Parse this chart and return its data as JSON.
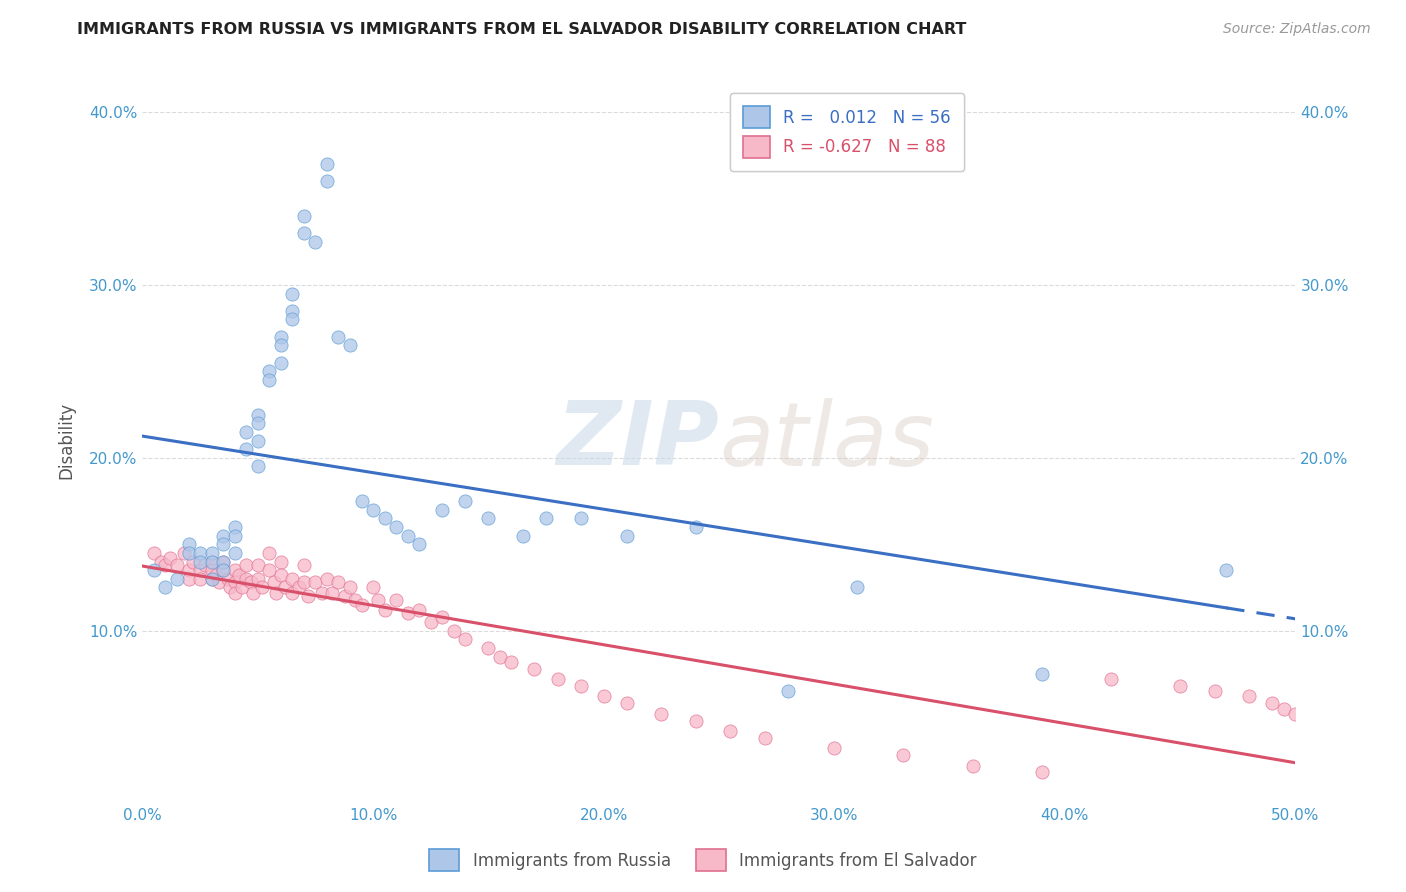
{
  "title": "IMMIGRANTS FROM RUSSIA VS IMMIGRANTS FROM EL SALVADOR DISABILITY CORRELATION CHART",
  "source": "Source: ZipAtlas.com",
  "ylabel": "Disability",
  "xlim": [
    0.0,
    0.5
  ],
  "ylim": [
    0.0,
    0.42
  ],
  "xticks": [
    0.0,
    0.1,
    0.2,
    0.3,
    0.4,
    0.5
  ],
  "xticklabels": [
    "0.0%",
    "10.0%",
    "20.0%",
    "30.0%",
    "40.0%",
    "50.0%"
  ],
  "yticks": [
    0.0,
    0.1,
    0.2,
    0.3,
    0.4
  ],
  "yticklabels": [
    "",
    "10.0%",
    "20.0%",
    "30.0%",
    "40.0%"
  ],
  "russia_color": "#aec6e8",
  "russia_edge": "#5b9bd5",
  "salvador_color": "#f7b8c8",
  "salvador_edge": "#e07090",
  "trend_russia_color": "#3a6fc4",
  "trend_salvador_color": "#d9506a",
  "R_russia": 0.012,
  "N_russia": 56,
  "R_salvador": -0.627,
  "N_salvador": 88,
  "watermark_zip": "ZIP",
  "watermark_atlas": "atlas",
  "background_color": "#ffffff",
  "grid_color": "#cccccc",
  "title_color": "#222222",
  "axis_label_color": "#555555",
  "tick_color": "#4499cc",
  "legend_label_russia": "Immigrants from Russia",
  "legend_label_salvador": "Immigrants from El Salvador",
  "russia_x": [
    0.005,
    0.01,
    0.015,
    0.02,
    0.02,
    0.025,
    0.025,
    0.03,
    0.03,
    0.03,
    0.035,
    0.035,
    0.035,
    0.035,
    0.04,
    0.04,
    0.04,
    0.045,
    0.045,
    0.05,
    0.05,
    0.05,
    0.05,
    0.055,
    0.055,
    0.06,
    0.06,
    0.06,
    0.065,
    0.065,
    0.065,
    0.07,
    0.07,
    0.075,
    0.08,
    0.08,
    0.085,
    0.09,
    0.095,
    0.1,
    0.105,
    0.11,
    0.115,
    0.12,
    0.13,
    0.14,
    0.15,
    0.165,
    0.175,
    0.19,
    0.21,
    0.24,
    0.28,
    0.31,
    0.39,
    0.47
  ],
  "russia_y": [
    0.135,
    0.125,
    0.13,
    0.15,
    0.145,
    0.145,
    0.14,
    0.145,
    0.14,
    0.13,
    0.155,
    0.15,
    0.14,
    0.135,
    0.16,
    0.155,
    0.145,
    0.215,
    0.205,
    0.225,
    0.22,
    0.21,
    0.195,
    0.25,
    0.245,
    0.27,
    0.265,
    0.255,
    0.295,
    0.285,
    0.28,
    0.34,
    0.33,
    0.325,
    0.37,
    0.36,
    0.27,
    0.265,
    0.175,
    0.17,
    0.165,
    0.16,
    0.155,
    0.15,
    0.17,
    0.175,
    0.165,
    0.155,
    0.165,
    0.165,
    0.155,
    0.16,
    0.065,
    0.125,
    0.075,
    0.135
  ],
  "salvador_x": [
    0.005,
    0.008,
    0.01,
    0.012,
    0.015,
    0.018,
    0.02,
    0.02,
    0.022,
    0.025,
    0.025,
    0.027,
    0.03,
    0.03,
    0.03,
    0.032,
    0.033,
    0.035,
    0.035,
    0.037,
    0.038,
    0.04,
    0.04,
    0.04,
    0.042,
    0.043,
    0.045,
    0.045,
    0.047,
    0.048,
    0.05,
    0.05,
    0.052,
    0.055,
    0.055,
    0.057,
    0.058,
    0.06,
    0.06,
    0.062,
    0.065,
    0.065,
    0.068,
    0.07,
    0.07,
    0.072,
    0.075,
    0.078,
    0.08,
    0.082,
    0.085,
    0.088,
    0.09,
    0.092,
    0.095,
    0.1,
    0.102,
    0.105,
    0.11,
    0.115,
    0.12,
    0.125,
    0.13,
    0.135,
    0.14,
    0.15,
    0.155,
    0.16,
    0.17,
    0.18,
    0.19,
    0.2,
    0.21,
    0.225,
    0.24,
    0.255,
    0.27,
    0.3,
    0.33,
    0.36,
    0.39,
    0.42,
    0.45,
    0.465,
    0.48,
    0.49,
    0.495,
    0.5
  ],
  "salvador_y": [
    0.145,
    0.14,
    0.138,
    0.142,
    0.138,
    0.145,
    0.135,
    0.13,
    0.14,
    0.135,
    0.13,
    0.138,
    0.14,
    0.135,
    0.13,
    0.132,
    0.128,
    0.14,
    0.135,
    0.13,
    0.125,
    0.135,
    0.128,
    0.122,
    0.132,
    0.125,
    0.138,
    0.13,
    0.128,
    0.122,
    0.138,
    0.13,
    0.125,
    0.145,
    0.135,
    0.128,
    0.122,
    0.14,
    0.132,
    0.125,
    0.13,
    0.122,
    0.125,
    0.138,
    0.128,
    0.12,
    0.128,
    0.122,
    0.13,
    0.122,
    0.128,
    0.12,
    0.125,
    0.118,
    0.115,
    0.125,
    0.118,
    0.112,
    0.118,
    0.11,
    0.112,
    0.105,
    0.108,
    0.1,
    0.095,
    0.09,
    0.085,
    0.082,
    0.078,
    0.072,
    0.068,
    0.062,
    0.058,
    0.052,
    0.048,
    0.042,
    0.038,
    0.032,
    0.028,
    0.022,
    0.018,
    0.072,
    0.068,
    0.065,
    0.062,
    0.058,
    0.055,
    0.052
  ]
}
